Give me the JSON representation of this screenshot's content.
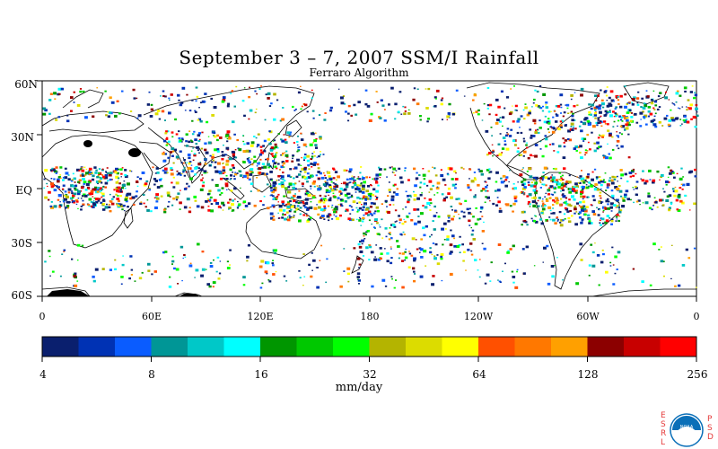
{
  "title": "September 3 – 7, 2007 SSM/I Rainfall",
  "subtitle": "Ferraro Algorithm",
  "lat_labels": [
    "60N",
    "30N",
    "EQ",
    "30S",
    "60S"
  ],
  "lon_labels": [
    "0",
    "60E",
    "120E",
    "180",
    "120W",
    "60W",
    "0"
  ],
  "colorbar": {
    "colors": [
      "#0a1f6e",
      "#0032b4",
      "#0a5cff",
      "#009696",
      "#00c8c8",
      "#00ffff",
      "#009600",
      "#00c800",
      "#00ff00",
      "#b4b400",
      "#dcdc00",
      "#ffff00",
      "#ff5000",
      "#ff7800",
      "#ffa000",
      "#8c0000",
      "#c80000",
      "#ff0000"
    ],
    "tick_labels": [
      "4",
      "8",
      "16",
      "32",
      "64",
      "128",
      "256"
    ],
    "units": "mm/day"
  },
  "logo": {
    "left_letters": [
      "E",
      "S",
      "R",
      "L"
    ],
    "right_letters": [
      "P",
      "S",
      "D"
    ],
    "emblem_text": "NOAA"
  }
}
